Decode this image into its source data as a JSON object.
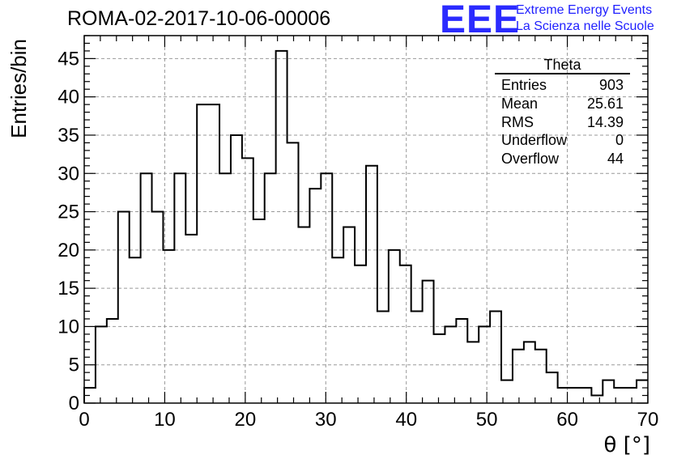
{
  "header": {
    "run_title": "ROMA-02-2017-10-06-00006",
    "logo_mark": "EEE",
    "logo_line1": "Extreme Energy Events",
    "logo_line2": "La Scienza nelle Scuole"
  },
  "stats_box": {
    "title": "Theta",
    "rows": [
      {
        "label": "Entries",
        "value": "903"
      },
      {
        "label": "Mean",
        "value": "25.61"
      },
      {
        "label": "RMS",
        "value": "14.39"
      },
      {
        "label": "Underflow",
        "value": "0"
      },
      {
        "label": "Overflow",
        "value": "44"
      }
    ]
  },
  "chart_data": {
    "type": "histogram",
    "xlabel": "θ [°]",
    "ylabel": "Entries/bin",
    "xlim": [
      0,
      70
    ],
    "ylim": [
      0,
      48
    ],
    "xticks": [
      0,
      10,
      20,
      30,
      40,
      50,
      60,
      70
    ],
    "yticks": [
      0,
      5,
      10,
      15,
      20,
      25,
      30,
      35,
      40,
      45
    ],
    "grid": true,
    "bin_edges": [
      0,
      1.4,
      2.8,
      4.2,
      5.6,
      7,
      8.4,
      9.8,
      11.2,
      12.6,
      14,
      15.4,
      16.8,
      18.2,
      19.6,
      21,
      22.4,
      23.8,
      25.2,
      26.6,
      28,
      29.4,
      30.8,
      32.2,
      33.6,
      35,
      36.4,
      37.8,
      39.2,
      40.6,
      42,
      43.4,
      44.8,
      46.2,
      47.6,
      49,
      50.4,
      51.8,
      53.2,
      54.6,
      56,
      57.4,
      58.8,
      60.2,
      61.6,
      63,
      64.4,
      65.8,
      67.2,
      68.6,
      70
    ],
    "values": [
      2,
      10,
      11,
      25,
      19,
      30,
      25,
      20,
      30,
      22,
      39,
      39,
      30,
      35,
      32,
      24,
      30,
      46,
      34,
      23,
      28,
      30,
      19,
      23,
      18,
      31,
      12,
      20,
      18,
      12,
      16,
      9,
      10,
      11,
      8,
      10,
      12,
      3,
      7,
      8,
      7,
      4,
      2,
      2,
      2,
      1,
      3,
      2,
      2,
      3
    ]
  }
}
